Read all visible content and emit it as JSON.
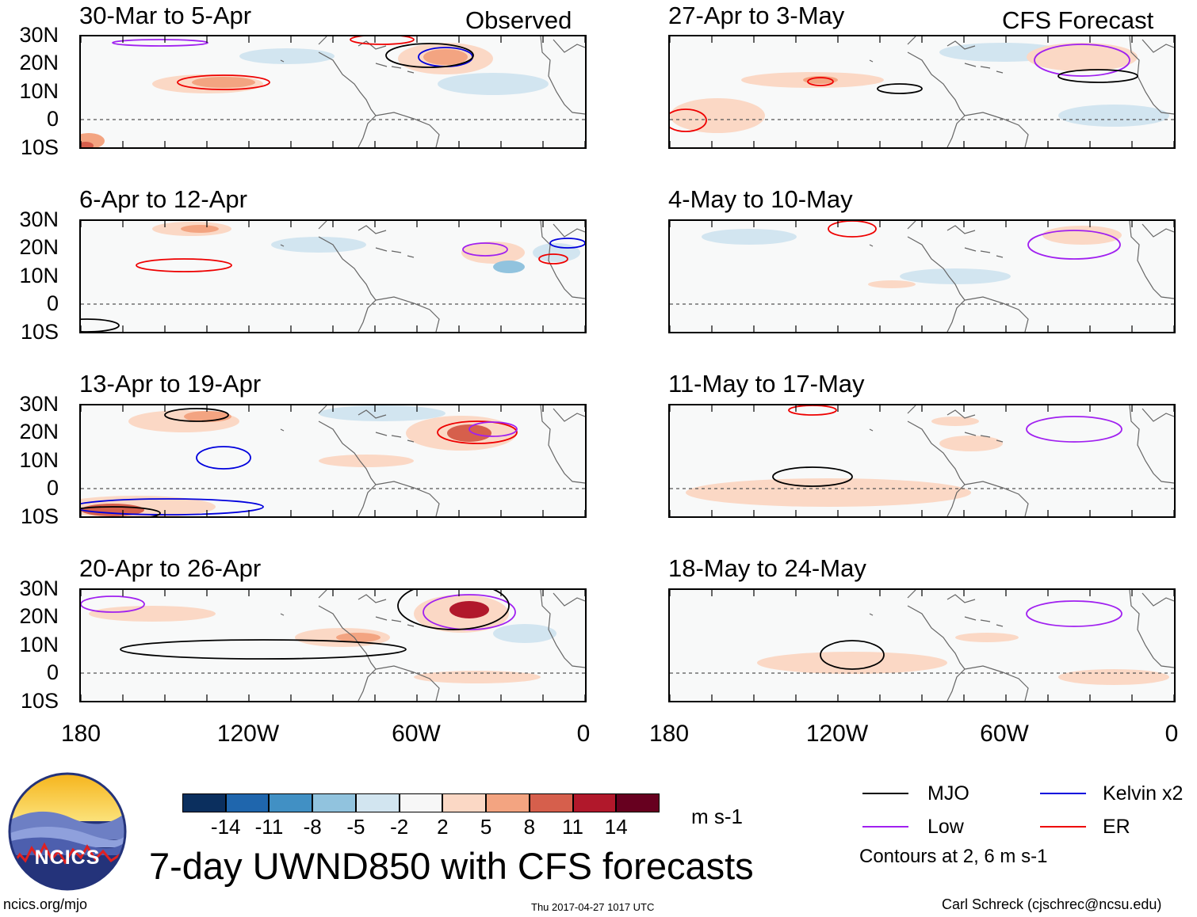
{
  "labels": {
    "observed": "Observed",
    "forecast": "CFS Forecast"
  },
  "panels": [
    {
      "id": "p1",
      "title": "30-Mar to 5-Apr"
    },
    {
      "id": "p2",
      "title": "6-Apr to 12-Apr"
    },
    {
      "id": "p3",
      "title": "13-Apr to 19-Apr"
    },
    {
      "id": "p4",
      "title": "20-Apr to 26-Apr"
    },
    {
      "id": "p5",
      "title": "27-Apr to 3-May"
    },
    {
      "id": "p6",
      "title": "4-May to 10-May"
    },
    {
      "id": "p7",
      "title": "11-May to 17-May"
    },
    {
      "id": "p8",
      "title": "18-May to 24-May"
    }
  ],
  "axes": {
    "lat_labels": [
      "30N",
      "20N",
      "10N",
      "0",
      "10S"
    ],
    "lon_labels": [
      "180",
      "120W",
      "60W",
      "0"
    ]
  },
  "colorbar": {
    "labels": [
      "-14",
      "-11",
      "-8",
      "-5",
      "-2",
      "2",
      "5",
      "8",
      "11",
      "14"
    ],
    "colors": [
      "#0b2f5e",
      "#1f66ad",
      "#4190c4",
      "#91c3de",
      "#d2e5f0",
      "#f7f7f7",
      "#fbd8c5",
      "#f3a481",
      "#d65f4c",
      "#b1182b",
      "#67001f"
    ],
    "units": "m s-1"
  },
  "legend": {
    "items": [
      {
        "label": "MJO",
        "color": "#000000"
      },
      {
        "label": "Kelvin x2",
        "color": "#0000dd"
      },
      {
        "label": "Low",
        "color": "#a020f0"
      },
      {
        "label": "ER",
        "color": "#ee0000"
      }
    ],
    "note": "Contours at 2, 6 m s-1"
  },
  "title": "7-day UWND850 with CFS forecasts",
  "logo_text": "NCICS",
  "footer": {
    "url": "ncics.org/mjo",
    "timestamp": "Thu 2017-04-27 1017 UTC",
    "credit": "Carl Schreck (cjschrec@ncsu.edu)"
  }
}
